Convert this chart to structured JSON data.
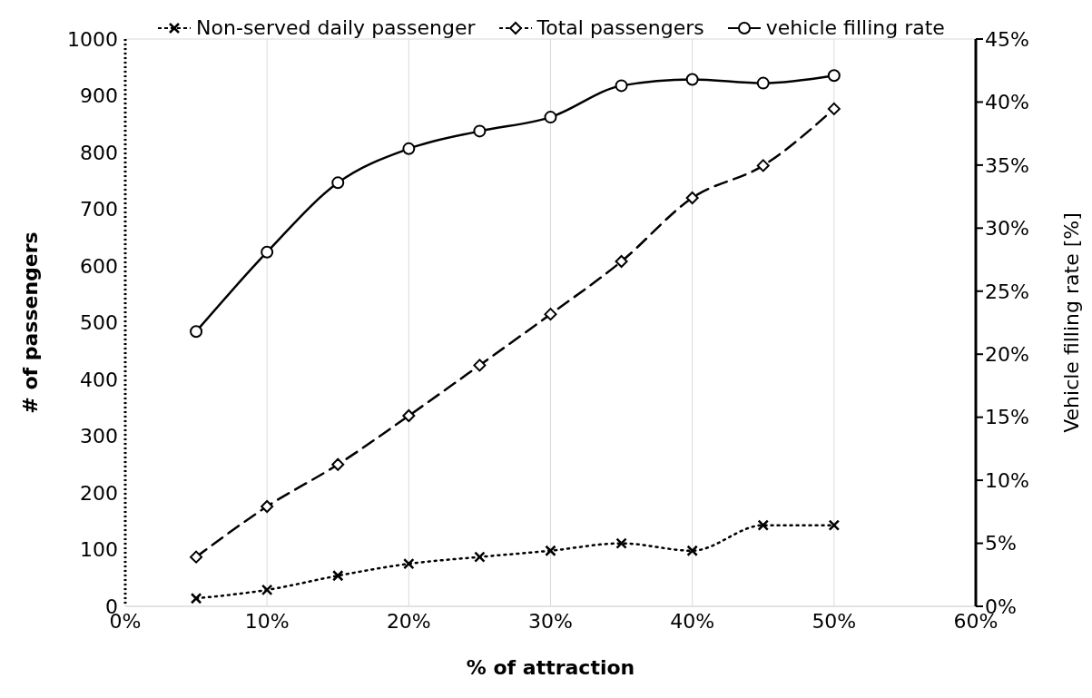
{
  "chart_data": {
    "type": "line",
    "xlabel": "% of attraction",
    "ylabel": "# of passengers",
    "y2label": "Vehicle filling rate [%]",
    "x": [
      5,
      10,
      15,
      20,
      25,
      30,
      35,
      40,
      45,
      50
    ],
    "xlim": [
      0,
      60
    ],
    "xticks": [
      {
        "value": 0,
        "label": "0%"
      },
      {
        "value": 10,
        "label": "10%"
      },
      {
        "value": 20,
        "label": "20%"
      },
      {
        "value": 30,
        "label": "30%"
      },
      {
        "value": 40,
        "label": "40%"
      },
      {
        "value": 50,
        "label": "50%"
      },
      {
        "value": 60,
        "label": "60%"
      }
    ],
    "ylim": [
      0,
      1000
    ],
    "yticks": [
      0,
      100,
      200,
      300,
      400,
      500,
      600,
      700,
      800,
      900,
      1000
    ],
    "y2lim": [
      0,
      45
    ],
    "y2ticks": [
      {
        "value": 0,
        "label": "0%"
      },
      {
        "value": 5,
        "label": "5%"
      },
      {
        "value": 10,
        "label": "10%"
      },
      {
        "value": 15,
        "label": "15%"
      },
      {
        "value": 20,
        "label": "20%"
      },
      {
        "value": 25,
        "label": "25%"
      },
      {
        "value": 30,
        "label": "30%"
      },
      {
        "value": 35,
        "label": "35%"
      },
      {
        "value": 40,
        "label": "40%"
      },
      {
        "value": 45,
        "label": "45%"
      }
    ],
    "grid": true,
    "legend": "top",
    "series": [
      {
        "name": "Non-served daily passenger",
        "color": "#000000",
        "marker": "cross",
        "line_style": "dotted",
        "values": [
          14,
          29,
          54,
          75,
          87,
          98,
          111,
          98,
          143,
          143
        ]
      },
      {
        "name": "Total passengers",
        "color": "#000000",
        "marker": "diamond",
        "line_style": "dashed",
        "values": [
          87,
          176,
          250,
          336,
          425,
          515,
          608,
          720,
          777,
          877
        ]
      },
      {
        "name": "vehicle filling rate",
        "color": "#000000",
        "marker": "circle",
        "line_style": "solid",
        "axis": "y2",
        "values": [
          21.8,
          28.1,
          33.6,
          36.3,
          37.7,
          38.8,
          41.3,
          41.8,
          41.5,
          42.1
        ]
      }
    ]
  }
}
